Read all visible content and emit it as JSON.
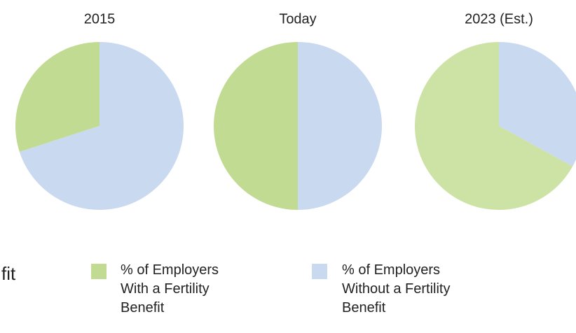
{
  "chart_data": [
    {
      "type": "pie",
      "title": "2015",
      "categories": [
        "% of Employers With a Fertility Benefit",
        "% of Employers Without a Fertility Benefit"
      ],
      "values": [
        30,
        70
      ],
      "colors": [
        "#c2db93",
        "#c9d9ef"
      ]
    },
    {
      "type": "pie",
      "title": "Today",
      "categories": [
        "% of Employers With a Fertility Benefit",
        "% of Employers Without a Fertility Benefit"
      ],
      "values": [
        50,
        50
      ],
      "colors": [
        "#c2db93",
        "#c9d9ef"
      ]
    },
    {
      "type": "pie",
      "title": "2023 (Est.)",
      "categories": [
        "% of Employers With a Fertility Benefit",
        "% of Employers Without a Fertility Benefit"
      ],
      "values": [
        67,
        33
      ],
      "colors": [
        "#cde3a5",
        "#c9d9ef"
      ]
    }
  ],
  "left_text": "fit"
}
